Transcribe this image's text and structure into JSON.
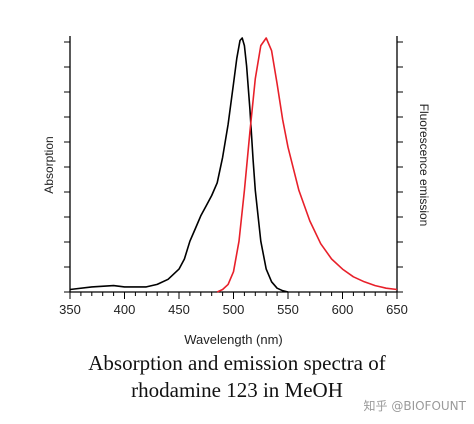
{
  "chart_data": {
    "type": "line",
    "xlabel": "Wavelength (nm)",
    "ylabel_left": "Absorption",
    "ylabel_right": "Fluorescence emission",
    "xlim": [
      350,
      650
    ],
    "x_ticks": [
      350,
      400,
      450,
      500,
      550,
      600,
      650
    ],
    "grid": false,
    "series": [
      {
        "name": "Absorption",
        "color": "#000000",
        "x": [
          350,
          370,
          390,
          400,
          410,
          420,
          430,
          440,
          450,
          455,
          460,
          465,
          470,
          475,
          480,
          485,
          490,
          495,
          500,
          503,
          506,
          508,
          510,
          512,
          515,
          518,
          520,
          525,
          530,
          535,
          540,
          545,
          550
        ],
        "y": [
          0.01,
          0.02,
          0.025,
          0.02,
          0.02,
          0.02,
          0.03,
          0.05,
          0.09,
          0.13,
          0.2,
          0.25,
          0.3,
          0.34,
          0.38,
          0.43,
          0.53,
          0.66,
          0.82,
          0.92,
          0.99,
          1.0,
          0.97,
          0.89,
          0.72,
          0.52,
          0.4,
          0.2,
          0.09,
          0.04,
          0.015,
          0.005,
          0.0
        ]
      },
      {
        "name": "Fluorescence emission",
        "color": "#e8202a",
        "x": [
          485,
          490,
          495,
          500,
          505,
          510,
          515,
          520,
          525,
          530,
          535,
          540,
          545,
          550,
          560,
          570,
          580,
          590,
          600,
          610,
          620,
          630,
          640,
          650
        ],
        "y": [
          0.0,
          0.01,
          0.03,
          0.08,
          0.2,
          0.4,
          0.63,
          0.84,
          0.97,
          1.0,
          0.95,
          0.82,
          0.68,
          0.57,
          0.4,
          0.28,
          0.19,
          0.13,
          0.09,
          0.06,
          0.04,
          0.025,
          0.015,
          0.01
        ]
      }
    ]
  },
  "caption": {
    "line1": "Absorption and emission spectra of",
    "line2": "rhodamine 123 in MeOH"
  },
  "watermark": "知乎 @BIOFOUNT"
}
